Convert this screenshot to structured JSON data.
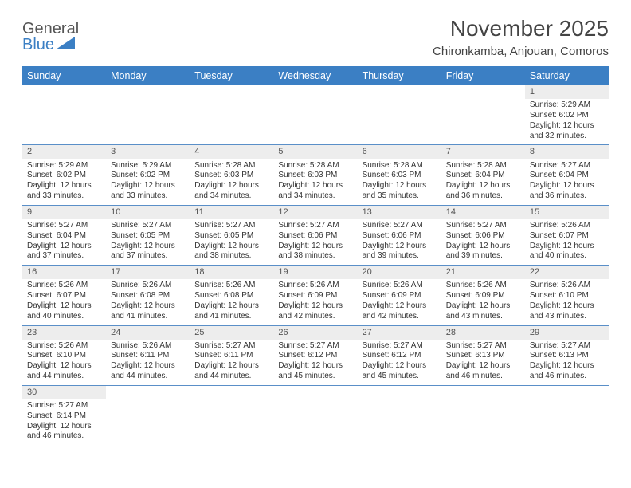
{
  "brand": {
    "name_part1": "General",
    "name_part2": "Blue"
  },
  "title": "November 2025",
  "location": "Chironkamba, Anjouan, Comoros",
  "colors": {
    "header_bg": "#3b7fc4",
    "header_text": "#ffffff",
    "daynum_bg": "#ededed",
    "cell_border": "#5a8fc8",
    "page_bg": "#ffffff",
    "text": "#333333",
    "title_text": "#444444"
  },
  "typography": {
    "title_fontsize_pt": 21,
    "location_fontsize_pt": 11,
    "header_fontsize_pt": 9.5,
    "body_fontsize_pt": 7.5
  },
  "layout": {
    "columns": 7,
    "rows": 6,
    "first_day_column_index": 6
  },
  "weekdays": [
    "Sunday",
    "Monday",
    "Tuesday",
    "Wednesday",
    "Thursday",
    "Friday",
    "Saturday"
  ],
  "days": [
    {
      "n": 1,
      "sunrise": "5:29 AM",
      "sunset": "6:02 PM",
      "daylight": "12 hours and 32 minutes."
    },
    {
      "n": 2,
      "sunrise": "5:29 AM",
      "sunset": "6:02 PM",
      "daylight": "12 hours and 33 minutes."
    },
    {
      "n": 3,
      "sunrise": "5:29 AM",
      "sunset": "6:02 PM",
      "daylight": "12 hours and 33 minutes."
    },
    {
      "n": 4,
      "sunrise": "5:28 AM",
      "sunset": "6:03 PM",
      "daylight": "12 hours and 34 minutes."
    },
    {
      "n": 5,
      "sunrise": "5:28 AM",
      "sunset": "6:03 PM",
      "daylight": "12 hours and 34 minutes."
    },
    {
      "n": 6,
      "sunrise": "5:28 AM",
      "sunset": "6:03 PM",
      "daylight": "12 hours and 35 minutes."
    },
    {
      "n": 7,
      "sunrise": "5:28 AM",
      "sunset": "6:04 PM",
      "daylight": "12 hours and 36 minutes."
    },
    {
      "n": 8,
      "sunrise": "5:27 AM",
      "sunset": "6:04 PM",
      "daylight": "12 hours and 36 minutes."
    },
    {
      "n": 9,
      "sunrise": "5:27 AM",
      "sunset": "6:04 PM",
      "daylight": "12 hours and 37 minutes."
    },
    {
      "n": 10,
      "sunrise": "5:27 AM",
      "sunset": "6:05 PM",
      "daylight": "12 hours and 37 minutes."
    },
    {
      "n": 11,
      "sunrise": "5:27 AM",
      "sunset": "6:05 PM",
      "daylight": "12 hours and 38 minutes."
    },
    {
      "n": 12,
      "sunrise": "5:27 AM",
      "sunset": "6:06 PM",
      "daylight": "12 hours and 38 minutes."
    },
    {
      "n": 13,
      "sunrise": "5:27 AM",
      "sunset": "6:06 PM",
      "daylight": "12 hours and 39 minutes."
    },
    {
      "n": 14,
      "sunrise": "5:27 AM",
      "sunset": "6:06 PM",
      "daylight": "12 hours and 39 minutes."
    },
    {
      "n": 15,
      "sunrise": "5:26 AM",
      "sunset": "6:07 PM",
      "daylight": "12 hours and 40 minutes."
    },
    {
      "n": 16,
      "sunrise": "5:26 AM",
      "sunset": "6:07 PM",
      "daylight": "12 hours and 40 minutes."
    },
    {
      "n": 17,
      "sunrise": "5:26 AM",
      "sunset": "6:08 PM",
      "daylight": "12 hours and 41 minutes."
    },
    {
      "n": 18,
      "sunrise": "5:26 AM",
      "sunset": "6:08 PM",
      "daylight": "12 hours and 41 minutes."
    },
    {
      "n": 19,
      "sunrise": "5:26 AM",
      "sunset": "6:09 PM",
      "daylight": "12 hours and 42 minutes."
    },
    {
      "n": 20,
      "sunrise": "5:26 AM",
      "sunset": "6:09 PM",
      "daylight": "12 hours and 42 minutes."
    },
    {
      "n": 21,
      "sunrise": "5:26 AM",
      "sunset": "6:09 PM",
      "daylight": "12 hours and 43 minutes."
    },
    {
      "n": 22,
      "sunrise": "5:26 AM",
      "sunset": "6:10 PM",
      "daylight": "12 hours and 43 minutes."
    },
    {
      "n": 23,
      "sunrise": "5:26 AM",
      "sunset": "6:10 PM",
      "daylight": "12 hours and 44 minutes."
    },
    {
      "n": 24,
      "sunrise": "5:26 AM",
      "sunset": "6:11 PM",
      "daylight": "12 hours and 44 minutes."
    },
    {
      "n": 25,
      "sunrise": "5:27 AM",
      "sunset": "6:11 PM",
      "daylight": "12 hours and 44 minutes."
    },
    {
      "n": 26,
      "sunrise": "5:27 AM",
      "sunset": "6:12 PM",
      "daylight": "12 hours and 45 minutes."
    },
    {
      "n": 27,
      "sunrise": "5:27 AM",
      "sunset": "6:12 PM",
      "daylight": "12 hours and 45 minutes."
    },
    {
      "n": 28,
      "sunrise": "5:27 AM",
      "sunset": "6:13 PM",
      "daylight": "12 hours and 46 minutes."
    },
    {
      "n": 29,
      "sunrise": "5:27 AM",
      "sunset": "6:13 PM",
      "daylight": "12 hours and 46 minutes."
    },
    {
      "n": 30,
      "sunrise": "5:27 AM",
      "sunset": "6:14 PM",
      "daylight": "12 hours and 46 minutes."
    }
  ],
  "labels": {
    "sunrise": "Sunrise: ",
    "sunset": "Sunset: ",
    "daylight": "Daylight: "
  }
}
